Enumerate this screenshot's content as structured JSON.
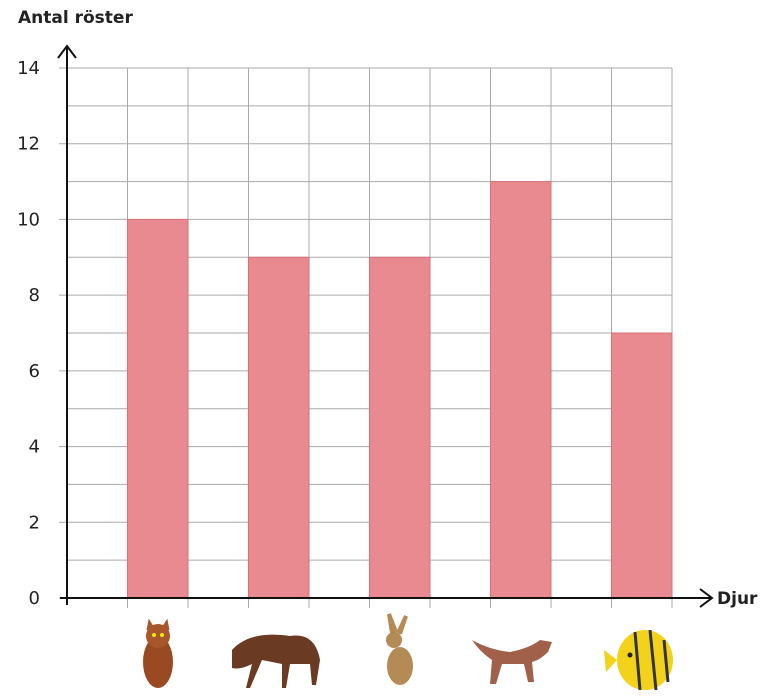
{
  "chart_data": {
    "type": "bar",
    "y_label": "Antal röster",
    "x_label": "Djur",
    "categories": [
      null,
      null,
      null,
      null,
      null
    ],
    "values": [
      10,
      9,
      9,
      11,
      7
    ],
    "color": "#e98a90",
    "ylim": [
      0,
      14
    ],
    "yticks": [
      0,
      2,
      4,
      6,
      8,
      10,
      12,
      14
    ],
    "minor_yticks": [
      1,
      3,
      5,
      7,
      9,
      11,
      13
    ],
    "grid": true
  }
}
